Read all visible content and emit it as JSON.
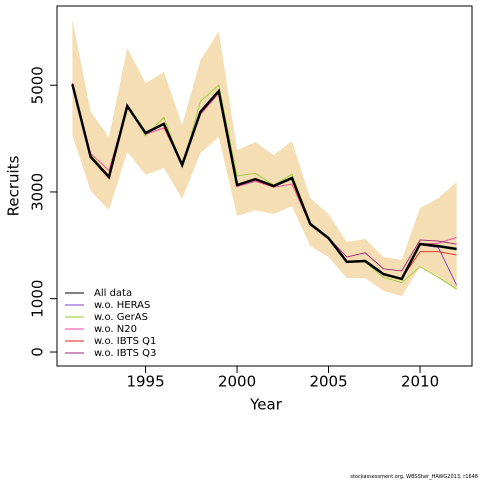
{
  "chart_data": {
    "type": "line",
    "xlabel": "Year",
    "ylabel": "Recruits",
    "x": [
      1991,
      1992,
      1993,
      1994,
      1995,
      1996,
      1997,
      1998,
      1999,
      2000,
      2001,
      2002,
      2003,
      2004,
      2005,
      2006,
      2007,
      2008,
      2009,
      2010,
      2011,
      2012
    ],
    "xlim": [
      1990.16,
      2012.84
    ],
    "xticks": [
      1995,
      2000,
      2005,
      2010
    ],
    "ylim": [
      -262,
      6485
    ],
    "yticks": [
      0,
      1000,
      3000,
      5000
    ],
    "band": {
      "color": "#f5deb3",
      "upper": [
        6240,
        4500,
        4030,
        5700,
        5040,
        5250,
        4255,
        5470,
        6015,
        3785,
        3935,
        3690,
        3955,
        2885,
        2585,
        2060,
        2120,
        1780,
        1725,
        2700,
        2885,
        3185
      ],
      "lower": [
        4065,
        3020,
        2660,
        3750,
        3320,
        3450,
        2870,
        3730,
        4030,
        2550,
        2660,
        2585,
        2735,
        1985,
        1780,
        1385,
        1385,
        1145,
        1050,
        1595,
        1425,
        1160
      ]
    },
    "series": [
      {
        "name": "All data",
        "color": "#000000",
        "values": [
          5020,
          3655,
          3280,
          4610,
          4105,
          4275,
          3505,
          4500,
          4890,
          3130,
          3240,
          3110,
          3260,
          2400,
          2135,
          1690,
          1705,
          1460,
          1370,
          2025,
          1985,
          1930
        ]
      },
      {
        "name": "w.o. HERAS",
        "color": "#7b3fd0",
        "values": [
          5010,
          3660,
          3270,
          4600,
          4100,
          4270,
          3500,
          4490,
          4880,
          3120,
          3230,
          3100,
          3250,
          2390,
          2130,
          1700,
          1720,
          1450,
          1360,
          2010,
          1960,
          1250
        ]
      },
      {
        "name": "w.o. GerAS",
        "color": "#9acd32",
        "values": [
          5000,
          3700,
          3300,
          4620,
          4050,
          4400,
          3480,
          4700,
          5000,
          3300,
          3350,
          3130,
          3330,
          2420,
          2140,
          1680,
          1690,
          1400,
          1300,
          1600,
          1400,
          1180
        ]
      },
      {
        "name": "w.o. N20",
        "color": "#ff3fa0",
        "values": [
          5030,
          3720,
          3400,
          4600,
          4080,
          4200,
          3520,
          4450,
          4850,
          3100,
          3200,
          3090,
          3150,
          2380,
          2120,
          1680,
          1700,
          1470,
          1380,
          2020,
          2040,
          2150
        ]
      },
      {
        "name": "w.o. IBTS Q1",
        "color": "#e8201a",
        "values": [
          5040,
          3640,
          3250,
          4620,
          4110,
          4290,
          3510,
          4510,
          4900,
          3140,
          3250,
          3120,
          3270,
          2410,
          2140,
          1690,
          1710,
          1465,
          1375,
          1880,
          1880,
          1820
        ]
      },
      {
        "name": "w.o. IBTS Q3",
        "color": "#a0207a",
        "values": [
          5010,
          3650,
          3270,
          4600,
          4100,
          4260,
          3500,
          4490,
          4880,
          3120,
          3230,
          3100,
          3250,
          2400,
          2140,
          1780,
          1860,
          1560,
          1520,
          2100,
          2080,
          2020
        ]
      }
    ]
  },
  "footer": "stockassessment.org, WBSSher_HAWG2013, r1648"
}
